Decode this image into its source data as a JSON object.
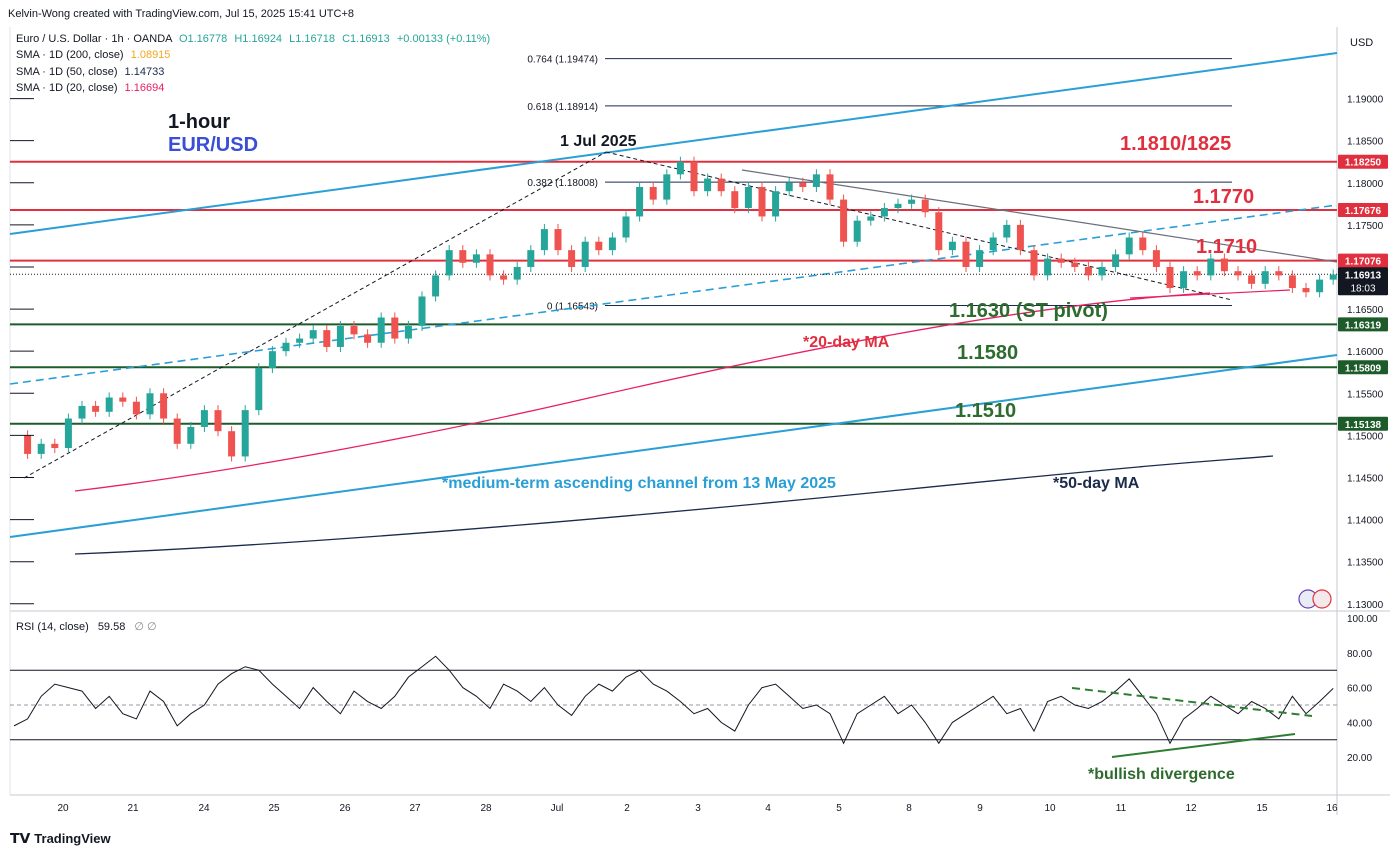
{
  "meta": {
    "author_line": "Kelvin-Wong created with TradingView.com, Jul 15, 2025 15:41 UTC+8",
    "currency": "USD",
    "footer": "TradingView"
  },
  "legend": {
    "symbol_line": "Euro / U.S. Dollar · 1h · OANDA",
    "ohlc": {
      "o": "O1.16778",
      "h": "H1.16924",
      "l": "L1.16718",
      "c": "C1.16913",
      "chg": "+0.00133 (+0.11%)"
    },
    "sma200": {
      "label": "SMA · 1D (200, close)",
      "value": "1.08915",
      "color": "#f5a623"
    },
    "sma50": {
      "label": "SMA · 1D (50, close)",
      "value": "1.14733",
      "color": "#1a2b4c"
    },
    "sma20": {
      "label": "SMA · 1D (20, close)",
      "value": "1.16694",
      "color": "#e91e63"
    }
  },
  "rsi_legend": {
    "label": "RSI (14, close)",
    "value": "59.58",
    "extra": "∅ ∅"
  },
  "annotations": {
    "timeframe": "1-hour",
    "pair": "EUR/USD",
    "peak_date": "1 Jul 2025",
    "r1": "1.1810/1825",
    "r2": "1.1770",
    "r3": "1.1710",
    "s1": "1.1630 (ST pivot)",
    "s2": "1.1580",
    "s3": "1.1510",
    "ma20_note": "*20-day MA",
    "ma50_note": "*50-day MA",
    "channel_note": "*medium-term ascending channel from 13 May 2025",
    "divergence_note": "*bullish divergence",
    "current_time_left": "18:03"
  },
  "fib": [
    {
      "label": "0.764 (1.19474)",
      "price": 1.19474
    },
    {
      "label": "0.618 (1.18914)",
      "price": 1.18914
    },
    {
      "label": "0.382 (1.18008)",
      "price": 1.18008
    },
    {
      "label": "0 (1.16543)",
      "price": 1.16543
    }
  ],
  "colors": {
    "candle_up": "#26a69a",
    "candle_down": "#ef5350",
    "resistance": "#e0303f",
    "support": "#1e5b2a",
    "channel": "#2a9fd6",
    "ma20": "#e91e63",
    "ma50": "#1a2b4c",
    "annotation_red": "#e0303f",
    "annotation_green": "#2e6b2e",
    "annotation_blue": "#2a9fd6",
    "annotation_navy": "#1a2b4c"
  },
  "chart_data": {
    "type": "candlestick",
    "title": "Euro / U.S. Dollar · 1h · OANDA",
    "price_axis": {
      "ticks": [
        "1.19000",
        "1.18500",
        "1.18000",
        "1.17500",
        "1.17000",
        "1.16500",
        "1.16000",
        "1.15500",
        "1.15000",
        "1.14500",
        "1.14000",
        "1.13500",
        "1.13000"
      ],
      "range": [
        1.1295,
        1.1985
      ]
    },
    "price_labels": [
      {
        "text": "1.18250",
        "price": 1.1825,
        "bg": "#e0303f"
      },
      {
        "text": "1.17676",
        "price": 1.17676,
        "bg": "#e0303f"
      },
      {
        "text": "1.17076",
        "price": 1.17076,
        "bg": "#e0303f"
      },
      {
        "text": "1.16913",
        "price": 1.16913,
        "bg": "#131722"
      },
      {
        "text": "1.16319",
        "price": 1.16319,
        "bg": "#1e5b2a"
      },
      {
        "text": "1.15809",
        "price": 1.15809,
        "bg": "#1e5b2a"
      },
      {
        "text": "1.15138",
        "price": 1.15138,
        "bg": "#1e5b2a"
      }
    ],
    "x_ticks": [
      "20",
      "21",
      "24",
      "25",
      "26",
      "27",
      "28",
      "Jul",
      "2",
      "3",
      "4",
      "5",
      "8",
      "9",
      "10",
      "11",
      "12",
      "15",
      "16"
    ],
    "levels": [
      {
        "name": "resistance-1.1825",
        "price": 1.1825,
        "kind": "resistance"
      },
      {
        "name": "resistance-1.1767",
        "price": 1.17676,
        "kind": "resistance"
      },
      {
        "name": "resistance-1.1707",
        "price": 1.17076,
        "kind": "resistance"
      },
      {
        "name": "support-1.1632",
        "price": 1.16319,
        "kind": "support"
      },
      {
        "name": "support-1.1581",
        "price": 1.15809,
        "kind": "support"
      },
      {
        "name": "support-1.1514",
        "price": 1.15138,
        "kind": "support"
      }
    ],
    "price_path": [
      [
        0,
        1.15
      ],
      [
        1,
        1.1478
      ],
      [
        2,
        1.149
      ],
      [
        3,
        1.1485
      ],
      [
        4,
        1.152
      ],
      [
        5,
        1.1535
      ],
      [
        6,
        1.1528
      ],
      [
        7,
        1.1545
      ],
      [
        8,
        1.154
      ],
      [
        9,
        1.1525
      ],
      [
        10,
        1.155
      ],
      [
        11,
        1.152
      ],
      [
        12,
        1.149
      ],
      [
        13,
        1.151
      ],
      [
        14,
        1.153
      ],
      [
        15,
        1.1505
      ],
      [
        16,
        1.1475
      ],
      [
        17,
        1.153
      ],
      [
        18,
        1.158
      ],
      [
        19,
        1.16
      ],
      [
        20,
        1.161
      ],
      [
        21,
        1.1615
      ],
      [
        22,
        1.1625
      ],
      [
        23,
        1.1605
      ],
      [
        24,
        1.163
      ],
      [
        25,
        1.162
      ],
      [
        26,
        1.161
      ],
      [
        27,
        1.164
      ],
      [
        28,
        1.1615
      ],
      [
        29,
        1.163
      ],
      [
        30,
        1.1665
      ],
      [
        31,
        1.169
      ],
      [
        32,
        1.172
      ],
      [
        33,
        1.1705
      ],
      [
        34,
        1.1715
      ],
      [
        35,
        1.169
      ],
      [
        36,
        1.1685
      ],
      [
        37,
        1.17
      ],
      [
        38,
        1.172
      ],
      [
        39,
        1.1745
      ],
      [
        40,
        1.172
      ],
      [
        41,
        1.17
      ],
      [
        42,
        1.173
      ],
      [
        43,
        1.172
      ],
      [
        44,
        1.1735
      ],
      [
        45,
        1.176
      ],
      [
        46,
        1.1795
      ],
      [
        47,
        1.178
      ],
      [
        48,
        1.181
      ],
      [
        49,
        1.1825
      ],
      [
        50,
        1.179
      ],
      [
        51,
        1.1805
      ],
      [
        52,
        1.179
      ],
      [
        53,
        1.177
      ],
      [
        54,
        1.1795
      ],
      [
        55,
        1.176
      ],
      [
        56,
        1.179
      ],
      [
        57,
        1.18
      ],
      [
        58,
        1.1795
      ],
      [
        59,
        1.181
      ],
      [
        60,
        1.178
      ],
      [
        61,
        1.173
      ],
      [
        62,
        1.1755
      ],
      [
        63,
        1.176
      ],
      [
        64,
        1.177
      ],
      [
        65,
        1.1775
      ],
      [
        66,
        1.178
      ],
      [
        67,
        1.1765
      ],
      [
        68,
        1.172
      ],
      [
        69,
        1.173
      ],
      [
        70,
        1.17
      ],
      [
        71,
        1.172
      ],
      [
        72,
        1.1735
      ],
      [
        73,
        1.175
      ],
      [
        74,
        1.172
      ],
      [
        75,
        1.169
      ],
      [
        76,
        1.171
      ],
      [
        77,
        1.1705
      ],
      [
        78,
        1.17
      ],
      [
        79,
        1.169
      ],
      [
        80,
        1.17
      ],
      [
        81,
        1.1715
      ],
      [
        82,
        1.1735
      ],
      [
        83,
        1.172
      ],
      [
        84,
        1.17
      ],
      [
        85,
        1.1675
      ],
      [
        86,
        1.1695
      ],
      [
        87,
        1.169
      ],
      [
        88,
        1.171
      ],
      [
        89,
        1.1695
      ],
      [
        90,
        1.169
      ],
      [
        91,
        1.168
      ],
      [
        92,
        1.1695
      ],
      [
        93,
        1.169
      ],
      [
        94,
        1.1675
      ],
      [
        95,
        1.167
      ],
      [
        96,
        1.1685
      ],
      [
        97,
        1.1691
      ]
    ],
    "rsi_axis": {
      "ticks": [
        "100.00",
        "80.00",
        "60.00",
        "40.00",
        "20.00"
      ],
      "range": [
        0,
        100
      ],
      "upper": 70,
      "lower": 30,
      "mid": 50
    },
    "rsi_path": [
      [
        0,
        38
      ],
      [
        1,
        42
      ],
      [
        2,
        55
      ],
      [
        3,
        62
      ],
      [
        4,
        60
      ],
      [
        5,
        58
      ],
      [
        6,
        48
      ],
      [
        7,
        55
      ],
      [
        8,
        45
      ],
      [
        9,
        42
      ],
      [
        10,
        58
      ],
      [
        11,
        52
      ],
      [
        12,
        38
      ],
      [
        13,
        45
      ],
      [
        14,
        50
      ],
      [
        15,
        62
      ],
      [
        16,
        68
      ],
      [
        17,
        72
      ],
      [
        18,
        70
      ],
      [
        19,
        62
      ],
      [
        20,
        55
      ],
      [
        21,
        48
      ],
      [
        22,
        60
      ],
      [
        23,
        52
      ],
      [
        24,
        45
      ],
      [
        25,
        58
      ],
      [
        26,
        52
      ],
      [
        27,
        48
      ],
      [
        28,
        55
      ],
      [
        29,
        66
      ],
      [
        30,
        72
      ],
      [
        31,
        78
      ],
      [
        32,
        70
      ],
      [
        33,
        60
      ],
      [
        34,
        55
      ],
      [
        35,
        48
      ],
      [
        36,
        62
      ],
      [
        37,
        58
      ],
      [
        38,
        52
      ],
      [
        39,
        60
      ],
      [
        40,
        50
      ],
      [
        41,
        44
      ],
      [
        42,
        55
      ],
      [
        43,
        62
      ],
      [
        44,
        58
      ],
      [
        45,
        66
      ],
      [
        46,
        70
      ],
      [
        47,
        62
      ],
      [
        48,
        58
      ],
      [
        49,
        52
      ],
      [
        50,
        45
      ],
      [
        51,
        48
      ],
      [
        52,
        40
      ],
      [
        53,
        35
      ],
      [
        54,
        50
      ],
      [
        55,
        60
      ],
      [
        56,
        62
      ],
      [
        57,
        55
      ],
      [
        58,
        48
      ],
      [
        59,
        50
      ],
      [
        60,
        45
      ],
      [
        61,
        28
      ],
      [
        62,
        45
      ],
      [
        63,
        50
      ],
      [
        64,
        55
      ],
      [
        65,
        45
      ],
      [
        66,
        50
      ],
      [
        67,
        40
      ],
      [
        68,
        28
      ],
      [
        69,
        40
      ],
      [
        70,
        45
      ],
      [
        71,
        50
      ],
      [
        72,
        55
      ],
      [
        73,
        45
      ],
      [
        74,
        48
      ],
      [
        75,
        35
      ],
      [
        76,
        52
      ],
      [
        77,
        55
      ],
      [
        78,
        50
      ],
      [
        79,
        48
      ],
      [
        80,
        52
      ],
      [
        81,
        58
      ],
      [
        82,
        65
      ],
      [
        83,
        55
      ],
      [
        84,
        45
      ],
      [
        85,
        28
      ],
      [
        86,
        42
      ],
      [
        87,
        48
      ],
      [
        88,
        55
      ],
      [
        89,
        50
      ],
      [
        90,
        45
      ],
      [
        91,
        52
      ],
      [
        92,
        48
      ],
      [
        93,
        42
      ],
      [
        94,
        55
      ],
      [
        95,
        45
      ],
      [
        96,
        52
      ],
      [
        97,
        59.58
      ]
    ]
  }
}
